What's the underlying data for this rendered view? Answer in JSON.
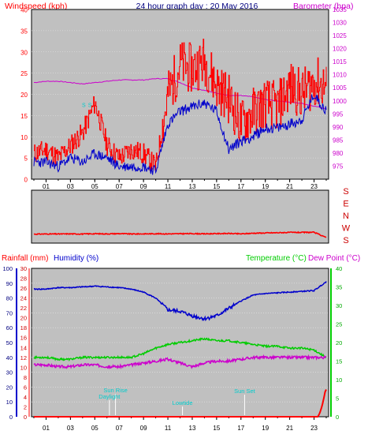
{
  "header": {
    "left_label": "Windspeed (kph)",
    "title": "24 hour graph day : 20 May 2016",
    "right_label": "Barometer (hpa)"
  },
  "wind_dir_letters": [
    "S",
    "E",
    "N",
    "W",
    "S"
  ],
  "bottom_header": {
    "rainfall_label": "Rainfall (mm)",
    "humidity_label": "Humidity (%)",
    "temp_label": "Temperature (°C)",
    "dew_label": "Dew Point (°C)"
  },
  "colors": {
    "wind": "#ff0000",
    "gust": "#ff0000",
    "avg_wind": "#0000cc",
    "barometer": "#cc00cc",
    "rain": "#ff0000",
    "humidity": "#0000cc",
    "temperature": "#00cc00",
    "dewpoint": "#cc00cc",
    "plot_bg": "#c0c0c0",
    "annotation": "#00cccc"
  },
  "chart_data": [
    {
      "type": "line",
      "title": "24 hour graph day : 20 May 2016",
      "x_ticks": [
        "01",
        "03",
        "05",
        "07",
        "09",
        "11",
        "13",
        "15",
        "17",
        "19",
        "21",
        "23"
      ],
      "x_hours": [
        0,
        1,
        2,
        3,
        4,
        5,
        6,
        7,
        8,
        9,
        10,
        11,
        12,
        13,
        14,
        15,
        16,
        17,
        18,
        19,
        20,
        21,
        22,
        23,
        24
      ],
      "left_axis": {
        "label": "Windspeed (kph)",
        "range": [
          0,
          40
        ],
        "ticks": [
          0,
          5,
          10,
          15,
          20,
          25,
          30,
          35,
          40
        ]
      },
      "right_axis": {
        "label": "Barometer (hpa)",
        "range": [
          970,
          1035
        ],
        "ticks": [
          975,
          980,
          985,
          990,
          995,
          1000,
          1005,
          1010,
          1015,
          1020,
          1025,
          1030,
          1035
        ]
      },
      "series": [
        {
          "name": "Windspeed",
          "axis": "left",
          "values": [
            6,
            7,
            5,
            8,
            11,
            18,
            8,
            5,
            7,
            6,
            3,
            20,
            27,
            26,
            28,
            22,
            19,
            13,
            16,
            18,
            17,
            22,
            20,
            23,
            22
          ]
        },
        {
          "name": "Avg wind",
          "axis": "left",
          "values": [
            4,
            4,
            3,
            5,
            4,
            6,
            5,
            3,
            3,
            3,
            2,
            13,
            16,
            17,
            18,
            16,
            7,
            9,
            10,
            12,
            12,
            13,
            14,
            20,
            16
          ]
        },
        {
          "name": "Barometer",
          "axis": "right",
          "values": [
            1007,
            1007.5,
            1007.5,
            1007,
            1006.5,
            1007,
            1007.5,
            1008,
            1008,
            1008,
            1008.5,
            1008.5,
            1007,
            1005,
            1004,
            1003,
            1002,
            1002,
            1001.5,
            1000.5,
            1000,
            999.5,
            999,
            998,
            997
          ]
        }
      ],
      "annotations": [
        {
          "text": "S",
          "hour": 4.1
        },
        {
          "text": "S",
          "hour": 4.6
        }
      ]
    },
    {
      "type": "line",
      "title": "Wind direction",
      "x_hours": [
        0,
        1,
        2,
        3,
        4,
        5,
        6,
        7,
        8,
        9,
        10,
        11,
        12,
        13,
        14,
        15,
        16,
        17,
        18,
        19,
        20,
        21,
        22,
        23,
        24
      ],
      "y_categories": [
        "S",
        "E",
        "N",
        "W",
        "S"
      ],
      "series": [
        {
          "name": "Wind direction",
          "values": [
            225,
            226,
            226,
            227,
            226,
            228,
            227,
            229,
            226,
            227,
            228,
            227,
            228,
            229,
            227,
            229,
            230,
            227,
            232,
            234,
            236,
            238,
            238,
            239,
            200
          ]
        }
      ]
    },
    {
      "type": "line",
      "x_ticks": [
        "01",
        "03",
        "05",
        "07",
        "09",
        "11",
        "13",
        "15",
        "17",
        "19",
        "21",
        "23"
      ],
      "x_hours": [
        0,
        1,
        2,
        3,
        4,
        5,
        6,
        7,
        8,
        9,
        10,
        11,
        12,
        13,
        14,
        15,
        16,
        17,
        18,
        19,
        20,
        21,
        22,
        23,
        24
      ],
      "axes": {
        "humidity": {
          "label": "Humidity (%)",
          "range": [
            0,
            100
          ],
          "ticks": [
            0,
            10,
            20,
            30,
            40,
            50,
            60,
            70,
            80,
            90,
            100
          ]
        },
        "rainfall": {
          "label": "Rainfall (mm)",
          "range": [
            0,
            30
          ],
          "ticks": [
            0,
            2,
            4,
            6,
            8,
            10,
            12,
            14,
            16,
            18,
            20,
            22,
            24,
            26,
            28,
            30
          ]
        },
        "temperature": {
          "label": "Temperature (°C)",
          "range": [
            0,
            40
          ],
          "ticks": [
            0,
            5,
            10,
            15,
            20,
            25,
            30,
            35,
            40
          ]
        }
      },
      "series": [
        {
          "name": "Humidity",
          "axis": "humidity",
          "values": [
            86,
            86,
            87,
            87,
            87.5,
            88,
            87.5,
            87,
            86,
            84,
            80,
            72,
            71,
            68,
            66,
            68,
            73,
            78,
            82,
            83,
            83.5,
            84,
            84.5,
            85,
            91
          ]
        },
        {
          "name": "Rainfall",
          "axis": "rainfall",
          "values": [
            0,
            0,
            0,
            0,
            0,
            0,
            0,
            0,
            0,
            0,
            0,
            0,
            0,
            0,
            0,
            0,
            0,
            0,
            0,
            0,
            0,
            0,
            0,
            0.4,
            5.5
          ]
        },
        {
          "name": "Temperature",
          "axis": "temperature",
          "values": [
            16,
            16,
            15.5,
            15.5,
            16,
            16,
            16,
            16,
            16,
            17,
            18.5,
            19.5,
            20,
            20.5,
            21,
            20.5,
            20.5,
            20,
            19.5,
            19,
            19,
            18.5,
            18.5,
            18,
            16
          ]
        },
        {
          "name": "Dew Point",
          "axis": "temperature",
          "values": [
            14,
            14,
            13.5,
            13.5,
            14,
            14,
            13.5,
            13.5,
            14,
            14.5,
            15,
            15.5,
            14.5,
            13.5,
            14.5,
            15,
            15,
            15.5,
            16,
            16,
            16,
            16,
            16,
            16,
            16
          ]
        }
      ],
      "events": [
        {
          "label": "Sun Rise",
          "hour": 6.7
        },
        {
          "label": "Daylight",
          "hour": 6.2
        },
        {
          "label": "Lowtide",
          "hour": 12.2
        },
        {
          "label": "Sun Set",
          "hour": 17.3
        }
      ]
    }
  ]
}
